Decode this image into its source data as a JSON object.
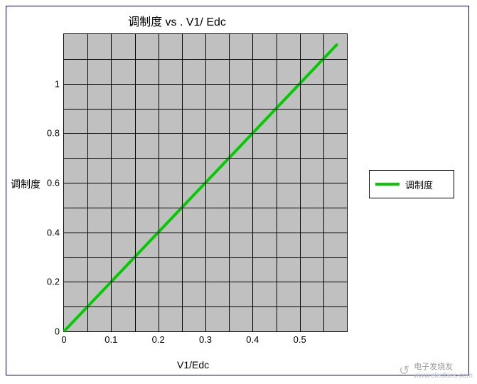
{
  "chart": {
    "type": "line",
    "title": "调制度 vs . V1/ Edc",
    "title_fontsize": 16,
    "xlabel": "V1/Edc",
    "ylabel": "调制度",
    "label_fontsize": 14,
    "background_color": "#ffffff",
    "border_color": "#000080",
    "plot": {
      "background_color": "#c0c0c0",
      "grid_color": "#000000",
      "x": {
        "lim": [
          0,
          0.6
        ],
        "ticks": [
          0,
          0.1,
          0.2,
          0.3,
          0.4,
          0.5
        ],
        "tick_labels": [
          "0",
          "0.1",
          "0.2",
          "0.3",
          "0.4",
          "0.5"
        ],
        "minor_ticks": [
          0.05,
          0.15,
          0.25,
          0.35,
          0.45,
          0.55
        ]
      },
      "y": {
        "lim": [
          0,
          1.2
        ],
        "ticks": [
          0,
          0.2,
          0.4,
          0.6,
          0.8,
          1
        ],
        "tick_labels": [
          "0",
          "0.2",
          "0.4",
          "0.6",
          "0.8",
          "1"
        ],
        "minor_ticks": [
          0.1,
          0.3,
          0.5,
          0.7,
          0.9,
          1.1
        ]
      }
    },
    "series": [
      {
        "name": "调制度",
        "color": "#00cc00",
        "line_width": 4,
        "x": [
          0,
          0.1,
          0.2,
          0.3,
          0.4,
          0.5,
          0.58
        ],
        "y": [
          0,
          0.2,
          0.4,
          0.6,
          0.8,
          1.0,
          1.16
        ]
      }
    ],
    "legend": {
      "label": "调制度",
      "swatch_color": "#00cc00",
      "border_color": "#000000",
      "background_color": "#ffffff"
    },
    "tick_fontsize": 13
  },
  "watermark": {
    "icon": "↺",
    "line1": "电子发烧友",
    "line2": "www.elecfans.com",
    "color": "#999999"
  }
}
